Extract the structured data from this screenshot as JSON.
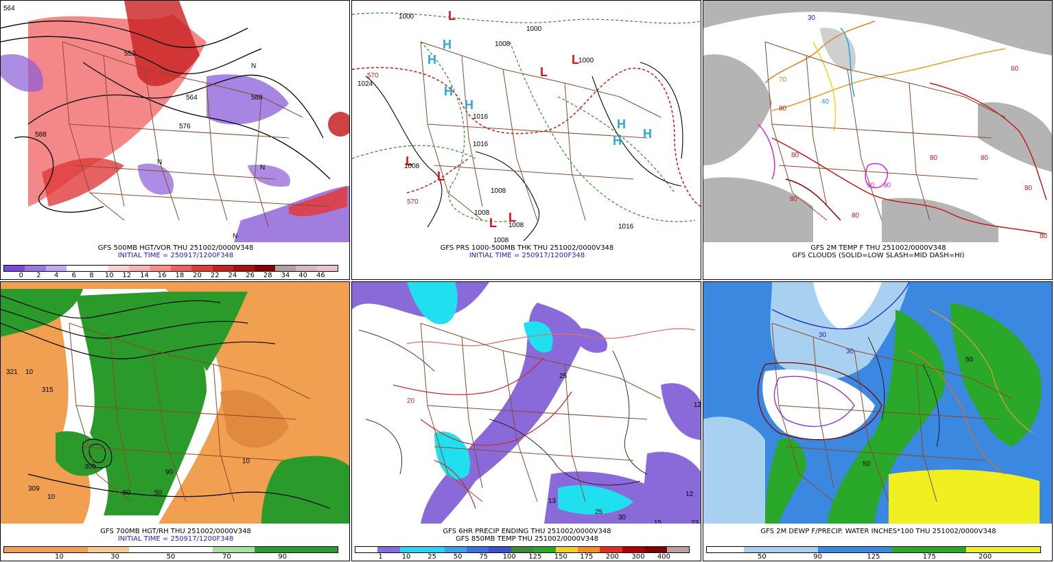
{
  "colors": {
    "state_lines": "#8b4a2b",
    "height_contour": "#000000",
    "vort_low": "#8a5cd8",
    "vort_high": "#e0303a",
    "thick_warm": "#cc1f1f",
    "thick_cold": "#2a8a2a",
    "high_marker": "#2aa8d8",
    "low_marker": "#e01010",
    "cloud_gray": "#b4b4b4",
    "rh_dry": "#f0a050",
    "rh_moist": "#2a9a2a",
    "precip_purple": "#8a6ad8",
    "precip_cyan": "#20e0f0",
    "pwat_blue": "#3a88e0",
    "pwat_green": "#2aa82a",
    "pwat_yellow": "#f0f020"
  },
  "panels": [
    {
      "title": "GFS 500MB HGT/VOR THU 251002/0000V348",
      "subtitle": "INITIAL TIME = 250917/1200F348",
      "colorbar": {
        "colors": [
          "#7a4ad8",
          "#9a78e0",
          "#c0aaf0",
          "#ffffff",
          "#ffffff",
          "#ffd0d0",
          "#ffb0b0",
          "#ff8a8a",
          "#f06060",
          "#e03a3a",
          "#c82020",
          "#a81010",
          "#8a0000",
          "#b0a0a0",
          "#d8b8c0",
          "#f0c0d0"
        ],
        "labels": [
          "0",
          "2",
          "4",
          "6",
          "8",
          "10",
          "12",
          "14",
          "16",
          "18",
          "20",
          "22",
          "24",
          "26",
          "28",
          "34",
          "40",
          "46"
        ]
      },
      "contour_labels": [
        "564",
        "552",
        "588",
        "564",
        "576",
        "588"
      ],
      "vorticity_label": "N"
    },
    {
      "title": "GFS PRS 1000-500MB THK THU 251002/0000V348",
      "subtitle": "INITIAL TIME = 250917/1200F348",
      "isobar_labels": [
        "1000",
        "1024",
        "1008",
        "1000",
        "1000",
        "1016",
        "1016",
        "1008",
        "1008",
        "1008",
        "1008",
        "1016",
        "570",
        "570",
        "1008"
      ],
      "high_symbol": "H",
      "low_symbol": "L"
    },
    {
      "title": "GFS 2M TEMP F THU 251002/0000V348",
      "subtitle": "GFS CLOUDS (SOLID=LOW SLASH=MID DASH=HI)",
      "temp_labels": [
        "70",
        "80",
        "80",
        "80",
        "80",
        "80",
        "90",
        "90",
        "80",
        "80",
        "80",
        "30",
        "40",
        "60"
      ]
    },
    {
      "title": "GFS 700MB HGT/RH THU 251002/0000V348",
      "subtitle": "INITIAL TIME = 250917/1200F348",
      "colorbar": {
        "colors": [
          "#f0a050",
          "#f0a050",
          "#f8c890",
          "#ffffff",
          "#ffffff",
          "#a8e0a0",
          "#2a9a2a",
          "#2a9a2a"
        ],
        "labels": [
          "10",
          "30",
          "50",
          "70",
          "90"
        ]
      },
      "contour_labels": [
        "321",
        "315",
        "309",
        "309",
        "10",
        "10",
        "50",
        "90",
        "50",
        "10"
      ]
    },
    {
      "title": "GFS 6HR PRECIP ENDING THU 251002/0000V348",
      "subtitle": "GFS 850MB TEMP THU 251002/0000V348",
      "colorbar": {
        "colors": [
          "#ffffff",
          "#8a6ad8",
          "#20d8f0",
          "#20d8f0",
          "#3aa0e8",
          "#3a70e0",
          "#3a50d0",
          "#3a8a3a",
          "#2aa82a",
          "#f0d020",
          "#f09020",
          "#e03020",
          "#b00000",
          "#800000",
          "#c0a0a0"
        ],
        "labels": [
          "1",
          "10",
          "25",
          "50",
          "75",
          "100",
          "125",
          "150",
          "175",
          "200",
          "300",
          "400"
        ]
      },
      "temp_labels": [
        "13",
        "25",
        "30",
        "15",
        "23",
        "12",
        "12",
        "20",
        "25"
      ]
    },
    {
      "title": "GFS 2M DEWP F/PRECIP. WATER INCHES*100 THU 251002/0000V348",
      "colorbar": {
        "colors": [
          "#ffffff",
          "#a8d0f0",
          "#a8d0f0",
          "#3a88e0",
          "#3a88e0",
          "#2aa82a",
          "#2aa82a",
          "#f0f020",
          "#f0f020"
        ],
        "labels": [
          "50",
          "90",
          "125",
          "175",
          "200"
        ]
      },
      "dewp_labels": [
        "30",
        "50",
        "50",
        "30"
      ]
    }
  ]
}
